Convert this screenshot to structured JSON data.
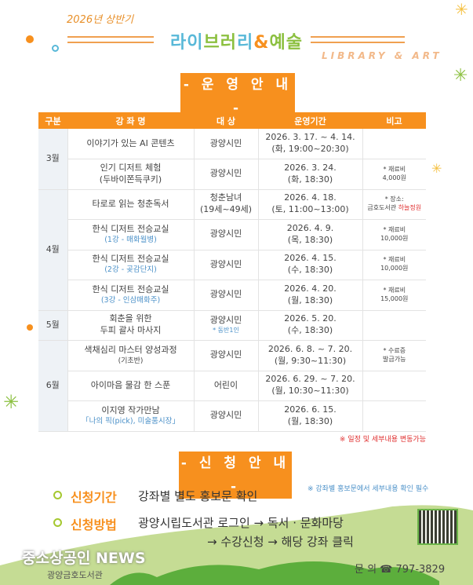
{
  "header": {
    "subtitle": "2026년 상반기",
    "title_parts": [
      {
        "t": "라이",
        "c": "#58b8d8"
      },
      {
        "t": "브러",
        "c": "#8cc040"
      },
      {
        "t": "리",
        "c": "#58b8d8"
      },
      {
        "t": "&",
        "c": "#f7901e"
      },
      {
        "t": "예술",
        "c": "#8cc040"
      }
    ],
    "english": "LIBRARY & ART"
  },
  "section1": {
    "label": "- 운 영 안 내 -"
  },
  "table": {
    "columns": [
      "구분",
      "강 좌 명",
      "대 상",
      "운영기간",
      "비고"
    ],
    "rows": [
      {
        "month": "3월",
        "span": 2,
        "name": "이야기가 있는 AI 콘텐츠",
        "name_sub": "",
        "target": "광양시민",
        "target_sub": "",
        "period1": "2026. 3. 17. ~ 4. 14.",
        "period2": "(화, 19:00~20:30)",
        "note1": "",
        "note2": ""
      },
      {
        "name": "인기 디저트 체험",
        "name_sub": "(두바이쫀득쿠키)",
        "name_sub_plain": true,
        "target": "광양시민",
        "target_sub": "",
        "period1": "2026. 3. 24.",
        "period2": "(화, 18:30)",
        "note1": "* 재료비",
        "note2": "4,000원"
      },
      {
        "month": "4월",
        "span": 4,
        "name": "타로로 읽는 청춘독서",
        "name_sub": "",
        "target": "청춘남녀",
        "target_sub": "(19세~49세)",
        "target_sub_plain": true,
        "period1": "2026. 4. 18.",
        "period2": "(토, 11:00~13:00)",
        "note1": "* 장소:",
        "note2": "금호도서관 ",
        "note2_red": "하늘정원"
      },
      {
        "name": "한식 디저트 전승교실",
        "name_sub": "(1강 - 매화월병)",
        "target": "광양시민",
        "target_sub": "",
        "period1": "2026. 4. 9.",
        "period2": "(목, 18:30)",
        "note1": "* 재료비",
        "note2": "10,000원"
      },
      {
        "name": "한식 디저트 전승교실",
        "name_sub": "(2강 - 곶감단지)",
        "target": "광양시민",
        "target_sub": "",
        "period1": "2026. 4. 15.",
        "period2": "(수, 18:30)",
        "note1": "* 재료비",
        "note2": "10,000원"
      },
      {
        "name": "한식 디저트 전승교실",
        "name_sub": "(3강 - 인삼매화주)",
        "target": "광양시민",
        "target_sub": "",
        "period1": "2026. 4. 20.",
        "period2": "(월, 18:30)",
        "note1": "* 재료비",
        "note2": "15,000원"
      },
      {
        "month": "5월",
        "span": 1,
        "name": "회춘을 위한",
        "name_sub": "두피 괄사 마사지",
        "name_sub_plain": true,
        "target": "광양시민",
        "target_sub": "* 동반1인",
        "period1": "2026. 5. 20.",
        "period2": "(수, 18:30)",
        "note1": "",
        "note2": ""
      },
      {
        "month": "6월",
        "span": 3,
        "name": "색채심리 마스터 양성과정",
        "name_sub": "(기초반)",
        "name_sub_plain": true,
        "target": "광양시민",
        "target_sub": "",
        "period1": "2026. 6. 8. ~ 7. 20.",
        "period2": "(월, 9:30~11:30)",
        "note1": "* 수료증",
        "note2": "발급가능"
      },
      {
        "name": "아이마음 물감 한 스푼",
        "name_sub": "",
        "target": "어린이",
        "target_sub": "",
        "period1": "2026. 6. 29. ~ 7. 20.",
        "period2": "(월, 10:30~11:30)",
        "note1": "",
        "note2": ""
      },
      {
        "name": "이지영 작가만남",
        "name_sub": "「나의 픽(pick), 미술품시장」",
        "target": "광양시민",
        "target_sub": "",
        "period1": "2026. 6. 15.",
        "period2": "(월, 18:30)",
        "note1": "",
        "note2": ""
      }
    ],
    "footnote": "※ 일정 및 세부내용 변동가능"
  },
  "section2": {
    "label": "- 신 청 안 내 -",
    "period_label": "신청기간",
    "period_value": "강좌별 별도 홍보문 확인",
    "period_note": "※ 강좌별 홍보문에서 세부내용 확인 필수",
    "method_label": "신청방법",
    "method_line1": "광양시립도서관 로그인 → 독서 · 문화마당",
    "method_line2": "→ 수강신청 → 해당 강좌 클릭"
  },
  "footer": {
    "library": "광양금호도서관",
    "contact": "문 의 ☎ 797-3829",
    "watermark": "중소상공인 NEWS"
  },
  "colors": {
    "accent": "#f7901e",
    "green": "#8cc040",
    "blue": "#58b8d8"
  }
}
